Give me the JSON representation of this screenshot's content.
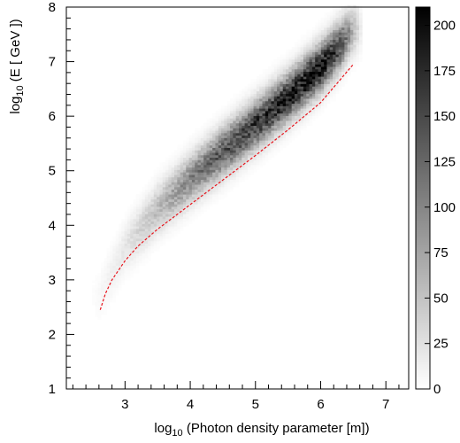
{
  "chart_data": {
    "type": "heatmap",
    "title": "",
    "xlabel": {
      "prefix": "log",
      "sub": "10",
      "rest": " (Photon density parameter [m])"
    },
    "ylabel": {
      "prefix": "log",
      "sub": "10",
      "rest": " (E [ GeV ])"
    },
    "xlim": [
      2.1,
      7.35
    ],
    "ylim": [
      1,
      8
    ],
    "x_ticks": [
      3,
      4,
      5,
      6,
      7
    ],
    "y_ticks": [
      1,
      2,
      3,
      4,
      5,
      6,
      7,
      8
    ],
    "x_minor_step": 0.2,
    "y_minor_step": 0.2,
    "colorbar": {
      "range": [
        0,
        210
      ],
      "ticks": [
        0,
        25,
        50,
        75,
        100,
        125,
        150,
        175,
        200
      ],
      "colormap": "grayscale (white = 0, black = max)"
    },
    "density_ridge": {
      "description": "2D histogram counts concentrated along a band",
      "x": [
        2.6,
        3.0,
        3.5,
        4.0,
        4.5,
        5.0,
        5.5,
        6.0,
        6.3,
        6.5
      ],
      "y_center": [
        2.7,
        3.6,
        4.3,
        4.85,
        5.35,
        5.85,
        6.35,
        6.9,
        7.3,
        7.6
      ],
      "peak_counts": [
        5,
        20,
        55,
        100,
        140,
        165,
        185,
        200,
        150,
        60
      ]
    },
    "series": [
      {
        "type": "line",
        "style": "dashed",
        "color": "#e8141c",
        "x": [
          2.62,
          2.7,
          2.8,
          3.0,
          3.2,
          3.5,
          4.0,
          4.5,
          5.0,
          5.5,
          6.0,
          6.5
        ],
        "y": [
          2.45,
          2.75,
          3.0,
          3.35,
          3.62,
          3.93,
          4.38,
          4.83,
          5.28,
          5.75,
          6.25,
          6.95
        ]
      }
    ]
  }
}
